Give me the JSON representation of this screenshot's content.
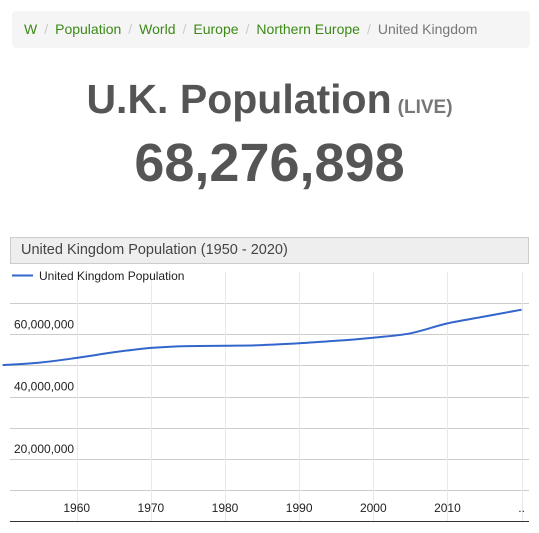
{
  "breadcrumb": {
    "items": [
      "W",
      "Population",
      "World",
      "Europe",
      "Northern Europe"
    ],
    "separator": "/",
    "current": "United Kingdom"
  },
  "header": {
    "title": "U.K. Population",
    "live_label": "(LIVE)",
    "counter": "68,276,898"
  },
  "colors": {
    "link": "#3c8a16",
    "series_line": "#3366cc"
  },
  "chart_data": {
    "type": "line",
    "title": "United Kingdom Population (1950 - 2020)",
    "xlabel": "",
    "ylabel": "",
    "legend": "top-left",
    "grid": true,
    "series": [
      {
        "name": "United Kingdom Population",
        "x": [
          1950,
          1955,
          1960,
          1965,
          1970,
          1975,
          1980,
          1985,
          1990,
          1995,
          2000,
          2005,
          2010,
          2015,
          2020
        ],
        "values": [
          50100000,
          50900000,
          52400000,
          54200000,
          55600000,
          56200000,
          56300000,
          56500000,
          57100000,
          57900000,
          58900000,
          60300000,
          63500000,
          65700000,
          67900000
        ]
      }
    ],
    "x_ticks": [
      "1960",
      "1970",
      "1980",
      "1990",
      "2000",
      "2010",
      ".."
    ],
    "x_tick_values": [
      1960,
      1970,
      1980,
      1990,
      2000,
      2010,
      2020
    ],
    "y_ticks": [
      "20,000,000",
      "40,000,000",
      "60,000,000"
    ],
    "y_tick_values": [
      20000000,
      40000000,
      60000000
    ],
    "xlim": [
      1951,
      2021
    ],
    "ylim": [
      0,
      80000000
    ]
  }
}
